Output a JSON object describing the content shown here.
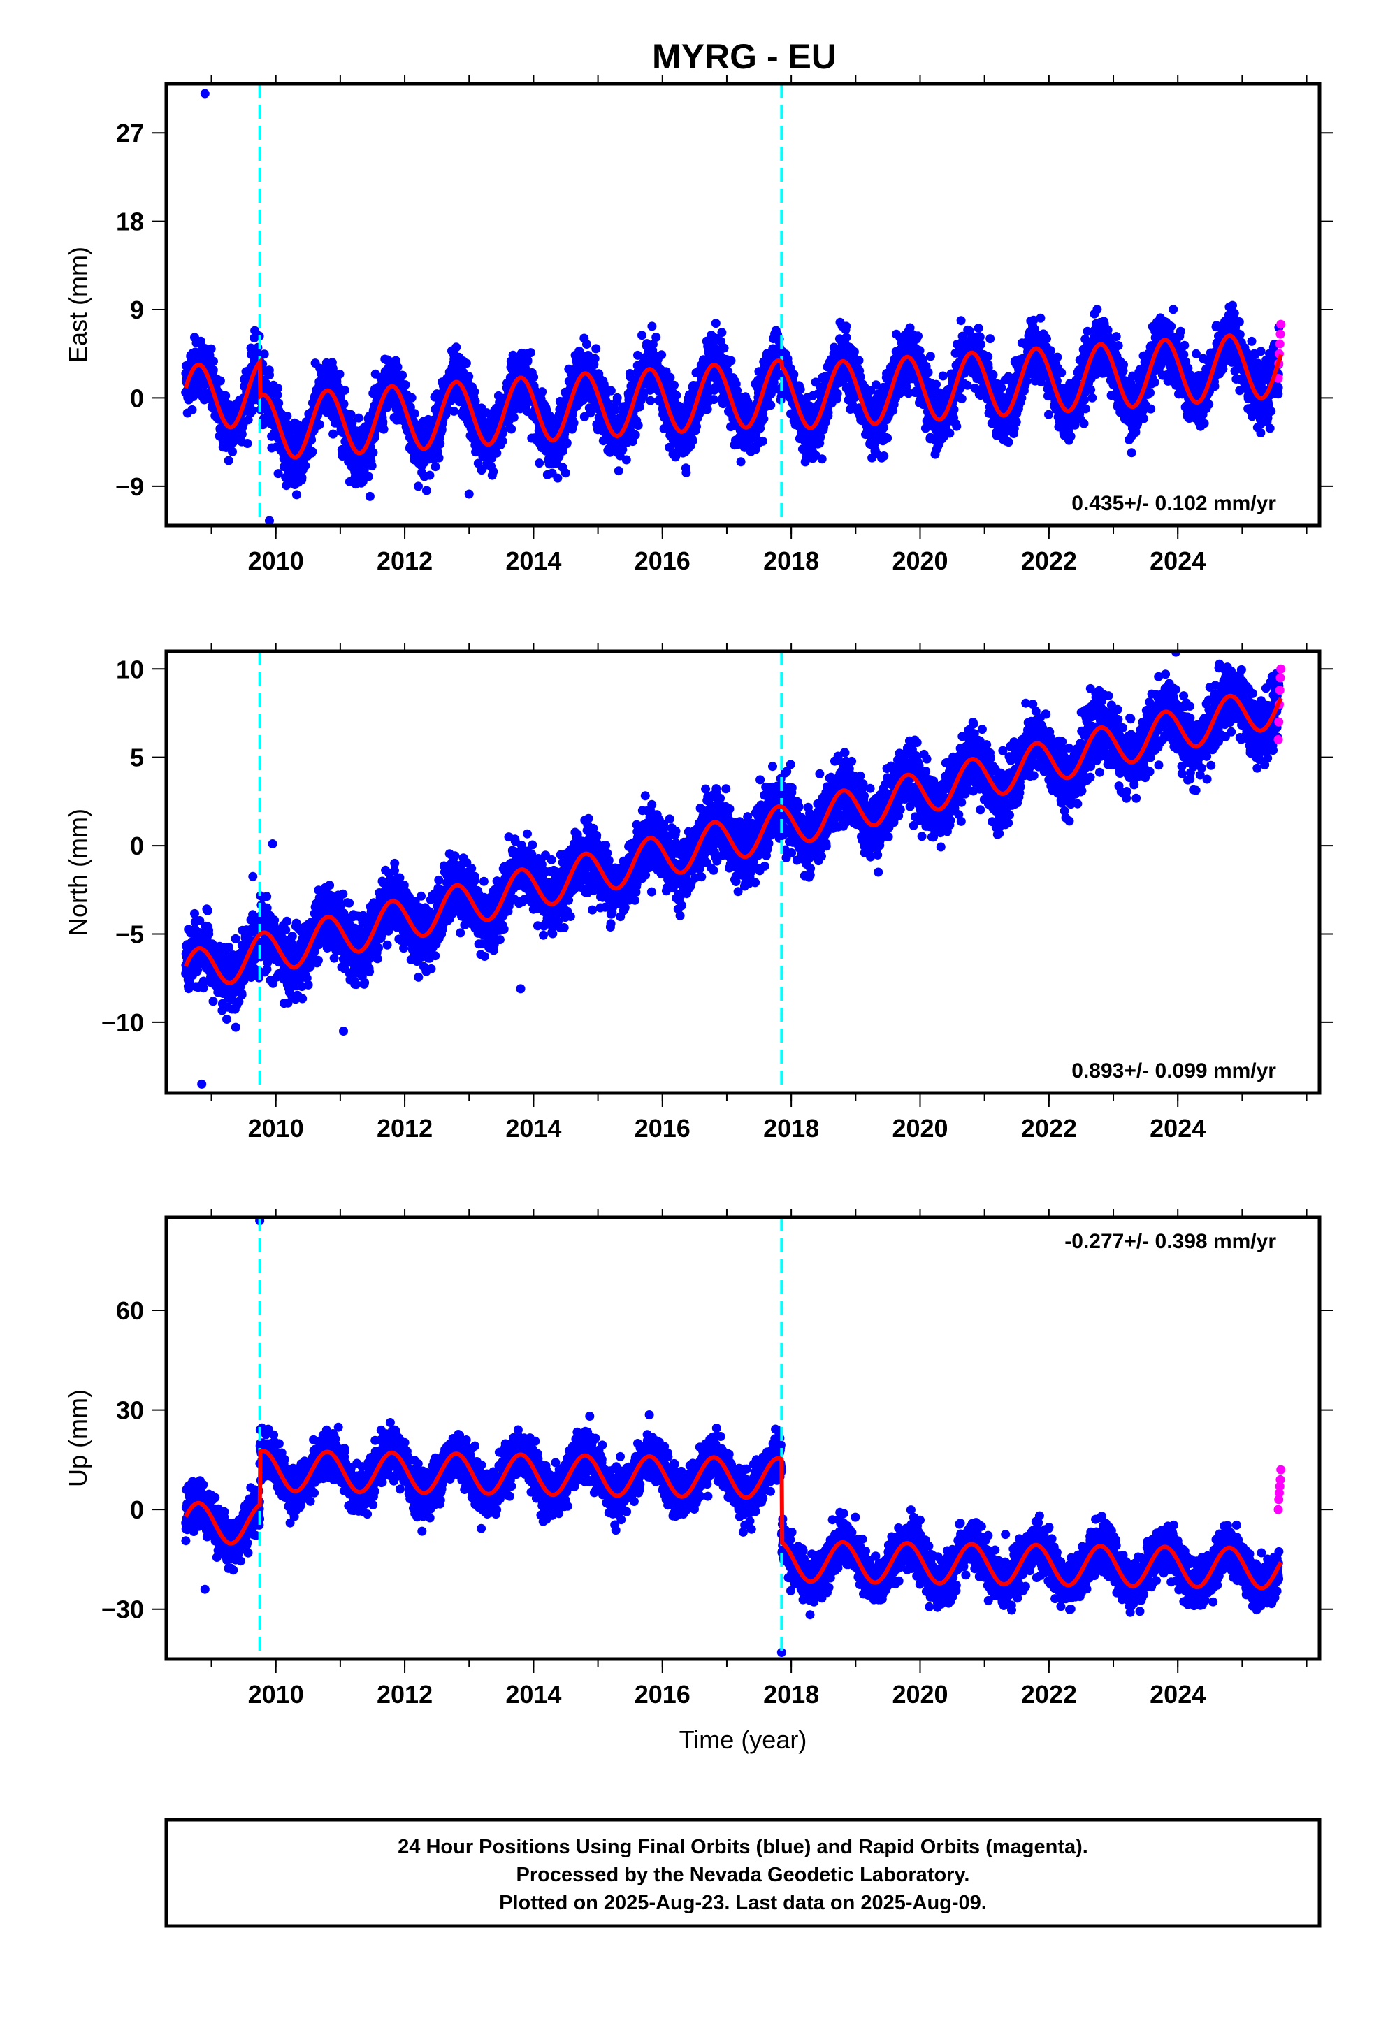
{
  "chart_data": {
    "title": "MYRG - EU",
    "type": "scatter",
    "xlabel": "Time (year)",
    "xlim": [
      2008.3,
      2026.2
    ],
    "xticks": [
      2010,
      2012,
      2014,
      2016,
      2018,
      2020,
      2022,
      2024
    ],
    "x_tick_labels": [
      "2010",
      "2012",
      "2014",
      "2016",
      "2018",
      "2020",
      "2022",
      "2024"
    ],
    "data_start": 2008.6,
    "data_end": 2025.6,
    "final_orbit_color": "#0000ff",
    "rapid_orbit_color": "#ff00ff",
    "model_color": "#ff0000",
    "event_line_color": "#00ffff",
    "events": [
      2009.75,
      2017.85
    ],
    "grid": false,
    "panels": [
      {
        "name": "east",
        "ylabel": "East (mm)",
        "ylim": [
          -13,
          32
        ],
        "yticks": [
          -9,
          0,
          9,
          18,
          27
        ],
        "y_tick_labels": [
          "−9",
          "0",
          "9",
          "18",
          "27"
        ],
        "rate_text": "0.435+/- 0.102 mm/yr",
        "rate_position": "bottom-right",
        "model": {
          "start_value": 0.0,
          "rate": 0.435,
          "annual_amplitude": 3.3,
          "annual_phase": 0.55,
          "offsets": [
            {
              "at": 2009.75,
              "size": -3.5
            },
            {
              "at": 2017.85,
              "size": -0.5
            }
          ],
          "scatter_sigma": 1.5
        },
        "outliers": [
          {
            "x": 2008.9,
            "y": 31
          },
          {
            "x": 2009.9,
            "y": -12.5
          },
          {
            "x": 2013.0,
            "y": -9.8
          }
        ],
        "rapid_values": [
          2.0,
          3.5,
          4.5,
          5.5,
          6.5,
          7.5
        ]
      },
      {
        "name": "north",
        "ylabel": "North (mm)",
        "ylim": [
          -14,
          11
        ],
        "yticks": [
          -10,
          -5,
          0,
          5,
          10
        ],
        "y_tick_labels": [
          "−10",
          "−5",
          "0",
          "5",
          "10"
        ],
        "rate_text": "0.893+/- 0.099 mm/yr",
        "rate_position": "bottom-right",
        "model": {
          "start_value": -7.2,
          "rate": 0.893,
          "annual_amplitude": 1.2,
          "annual_phase": 0.55,
          "offsets": [],
          "scatter_sigma": 0.9
        },
        "outliers": [
          {
            "x": 2008.85,
            "y": -13.5
          },
          {
            "x": 2009.95,
            "y": 0.1
          },
          {
            "x": 2011.05,
            "y": -10.5
          },
          {
            "x": 2013.8,
            "y": -8.1
          }
        ],
        "rapid_values": [
          6.0,
          7.0,
          8.0,
          8.8,
          9.5,
          10.0
        ]
      },
      {
        "name": "up",
        "ylabel": "Up (mm)",
        "ylim": [
          -45,
          88
        ],
        "yticks": [
          -30,
          0,
          30,
          60
        ],
        "y_tick_labels": [
          "−30",
          "0",
          "30",
          "60"
        ],
        "rate_text": "-0.277+/- 0.398 mm/yr",
        "rate_position": "top-right",
        "model": {
          "start_value": -4.0,
          "rate": -0.277,
          "annual_amplitude": 6.0,
          "annual_phase": 0.55,
          "offsets": [
            {
              "at": 2009.75,
              "size": 16.0
            },
            {
              "at": 2017.85,
              "size": -25.0
            }
          ],
          "scatter_sigma": 3.5
        },
        "outliers": [
          {
            "x": 2009.75,
            "y": 87
          },
          {
            "x": 2008.9,
            "y": -24
          },
          {
            "x": 2017.85,
            "y": -43
          }
        ],
        "rapid_values": [
          0.0,
          3.0,
          5.0,
          7.0,
          9.0,
          12.0
        ]
      }
    ]
  },
  "footer": {
    "line1": "24 Hour Positions Using Final Orbits (blue) and Rapid Orbits (magenta).",
    "line2": "Processed by the Nevada Geodetic Laboratory.",
    "line3": "Plotted on 2025-Aug-23. Last data on 2025-Aug-09."
  }
}
